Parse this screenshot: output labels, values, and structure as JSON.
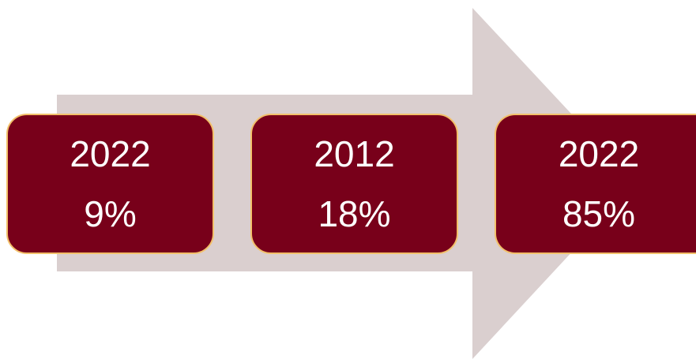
{
  "colors": {
    "arrow": "#dacfcf",
    "box_fill": "#78001a",
    "box_border": "#f2c06a",
    "text": "#ffffff"
  },
  "steps": [
    {
      "year": "2022",
      "value": "9%"
    },
    {
      "year": "2012",
      "value": "18%"
    },
    {
      "year": "2022",
      "value": "85%"
    }
  ]
}
